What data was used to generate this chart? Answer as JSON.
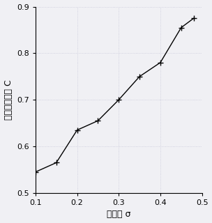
{
  "x": [
    0.1,
    0.15,
    0.2,
    0.25,
    0.3,
    0.35,
    0.4,
    0.45,
    0.48
  ],
  "y": [
    0.545,
    0.565,
    0.635,
    0.655,
    0.7,
    0.75,
    0.78,
    0.855,
    0.875
  ],
  "xlim": [
    0.1,
    0.5
  ],
  "ylim": [
    0.5,
    0.9
  ],
  "xticks": [
    0.1,
    0.2,
    0.3,
    0.4,
    0.5
  ],
  "yticks": [
    0.5,
    0.6,
    0.7,
    0.8,
    0.9
  ],
  "xlabel": "泊松比 σ",
  "ylabel": "深度校正因子 C",
  "line_color": "#000000",
  "marker": "+",
  "marker_size": 6,
  "line_width": 1.0,
  "bg_color": "#f0f0f4",
  "plot_bg_color": "#f0f0f4",
  "grid_color": "#c8c8d8",
  "grid_linestyle": ":",
  "grid_linewidth": 0.6,
  "tick_fontsize": 8,
  "label_fontsize": 9
}
